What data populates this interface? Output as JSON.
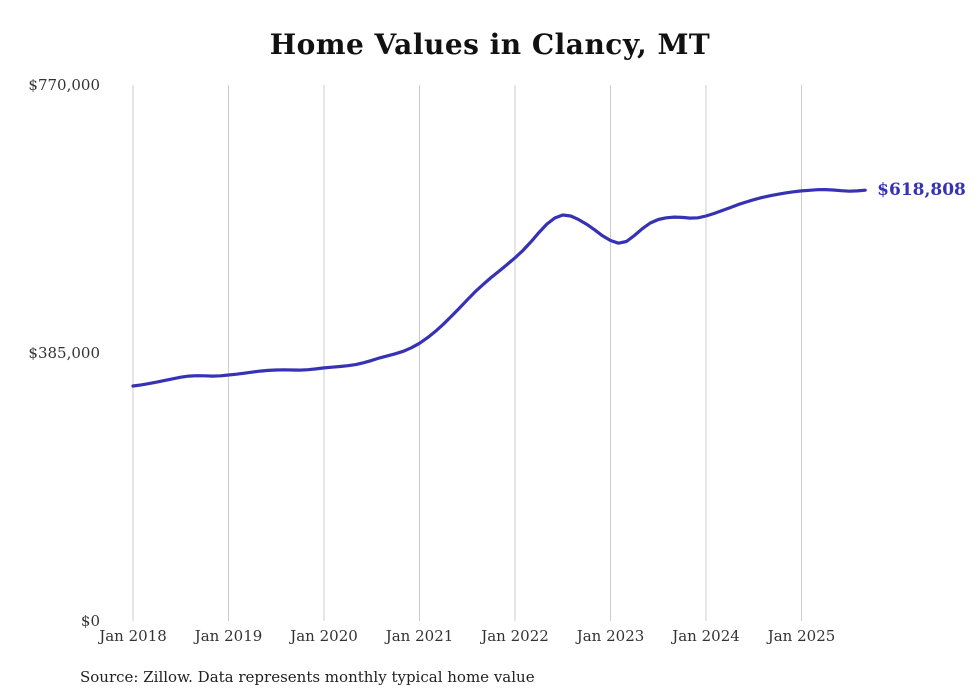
{
  "title": "Home Values in Clancy, MT",
  "current_value_label": "$618,808",
  "source_note": "Source: Zillow. Data represents monthly typical home value",
  "colors": {
    "line": "#3732b4",
    "end_label": "#3732b4",
    "grid": "#cccccc",
    "axis_text": "#333333",
    "title_text": "#111111",
    "source_text": "#222222",
    "background": "#ffffff"
  },
  "chart_data": {
    "type": "line",
    "title": "Home Values in Clancy, MT",
    "series_name": "Monthly typical home value",
    "xlabel": "",
    "ylabel": "",
    "ylim": [
      0,
      770000
    ],
    "grid": "vertical-only",
    "legend": "none",
    "end_annotation": "$618,808",
    "yticks": [
      {
        "value": 0,
        "label": "$0"
      },
      {
        "value": 385000,
        "label": "$385,000"
      },
      {
        "value": 770000,
        "label": "$770,000"
      }
    ],
    "xticks": [
      {
        "x": "2018-01",
        "label": "Jan 2018"
      },
      {
        "x": "2019-01",
        "label": "Jan 2019"
      },
      {
        "x": "2020-01",
        "label": "Jan 2020"
      },
      {
        "x": "2021-01",
        "label": "Jan 2021"
      },
      {
        "x": "2022-01",
        "label": "Jan 2022"
      },
      {
        "x": "2023-01",
        "label": "Jan 2023"
      },
      {
        "x": "2024-01",
        "label": "Jan 2024"
      },
      {
        "x": "2025-01",
        "label": "Jan 2025"
      }
    ],
    "x": [
      "2018-01",
      "2018-02",
      "2018-03",
      "2018-04",
      "2018-05",
      "2018-06",
      "2018-07",
      "2018-08",
      "2018-09",
      "2018-10",
      "2018-11",
      "2018-12",
      "2019-01",
      "2019-02",
      "2019-03",
      "2019-04",
      "2019-05",
      "2019-06",
      "2019-07",
      "2019-08",
      "2019-09",
      "2019-10",
      "2019-11",
      "2019-12",
      "2020-01",
      "2020-02",
      "2020-03",
      "2020-04",
      "2020-05",
      "2020-06",
      "2020-07",
      "2020-08",
      "2020-09",
      "2020-10",
      "2020-11",
      "2020-12",
      "2021-01",
      "2021-02",
      "2021-03",
      "2021-04",
      "2021-05",
      "2021-06",
      "2021-07",
      "2021-08",
      "2021-09",
      "2021-10",
      "2021-11",
      "2021-12",
      "2022-01",
      "2022-02",
      "2022-03",
      "2022-04",
      "2022-05",
      "2022-06",
      "2022-07",
      "2022-08",
      "2022-09",
      "2022-10",
      "2022-11",
      "2022-12",
      "2023-01",
      "2023-02",
      "2023-03",
      "2023-04",
      "2023-05",
      "2023-06",
      "2023-07",
      "2023-08",
      "2023-09",
      "2023-10",
      "2023-11",
      "2023-12",
      "2024-01",
      "2024-02",
      "2024-03",
      "2024-04",
      "2024-05",
      "2024-06",
      "2024-07",
      "2024-08",
      "2024-09",
      "2024-10",
      "2024-11",
      "2024-12",
      "2025-01",
      "2025-02",
      "2025-03",
      "2025-04",
      "2025-05",
      "2025-06",
      "2025-07",
      "2025-08",
      "2025-09"
    ],
    "values": [
      337600,
      339200,
      341000,
      343200,
      345600,
      348000,
      350200,
      351800,
      352400,
      352200,
      351800,
      352200,
      353400,
      354600,
      356000,
      357600,
      359000,
      360000,
      360600,
      360800,
      360600,
      360400,
      361000,
      362200,
      363600,
      364600,
      365600,
      366800,
      368400,
      371000,
      374400,
      378000,
      381000,
      384000,
      387600,
      392600,
      399000,
      407000,
      416000,
      426400,
      437600,
      449400,
      461400,
      473000,
      483600,
      493400,
      502600,
      512000,
      521800,
      532400,
      544600,
      558000,
      570200,
      579000,
      583200,
      581800,
      576600,
      570000,
      562000,
      553400,
      546600,
      542800,
      545200,
      553800,
      563600,
      571800,
      576800,
      579200,
      580200,
      579800,
      578800,
      579200,
      581800,
      585400,
      589600,
      593800,
      598000,
      601800,
      605200,
      608200,
      610800,
      613000,
      615000,
      616600,
      617800,
      618800,
      619600,
      619800,
      619200,
      618200,
      617400,
      617800,
      618808
    ]
  }
}
